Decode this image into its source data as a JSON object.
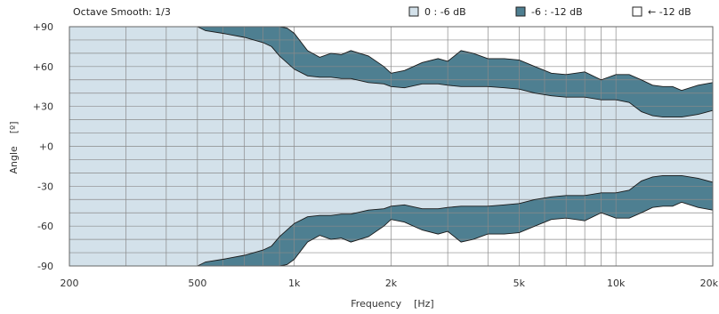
{
  "header": {
    "smoothing": "Octave Smooth: 1/3"
  },
  "legend": [
    {
      "label": "0 : -6 dB",
      "color": "#d3e1ea"
    },
    {
      "label": "-6 : -12 dB",
      "color": "#4e7f91"
    },
    {
      "label": "← -12 dB",
      "color": "#ffffff"
    }
  ],
  "colors": {
    "band_inner": "#d3e1ea",
    "band_mid": "#4e7f91",
    "outer": "#ffffff",
    "grid": "#8a8a8a",
    "edge": "#1a1a1a"
  },
  "chart_data": {
    "type": "area",
    "title": "Octave Smooth: 1/3",
    "xlabel": "Frequency    [Hz]",
    "ylabel": "Angle    [º]",
    "xscale": "log",
    "xlim": [
      200,
      20000
    ],
    "ylim": [
      -90,
      90
    ],
    "x_ticks": [
      {
        "value": 200,
        "label": "200"
      },
      {
        "value": 500,
        "label": "500"
      },
      {
        "value": 1000,
        "label": "1k"
      },
      {
        "value": 2000,
        "label": "2k"
      },
      {
        "value": 5000,
        "label": "5k"
      },
      {
        "value": 10000,
        "label": "10k"
      },
      {
        "value": 20000,
        "label": "20k"
      }
    ],
    "y_ticks": [
      {
        "value": 90,
        "label": "+90"
      },
      {
        "value": 60,
        "label": "+60"
      },
      {
        "value": 30,
        "label": "+30"
      },
      {
        "value": 0,
        "label": "+0"
      },
      {
        "value": -30,
        "label": "-30"
      },
      {
        "value": -60,
        "label": "-60"
      },
      {
        "value": -90,
        "label": "-90"
      }
    ],
    "grid": true,
    "legend_position": "top",
    "series": [
      {
        "name": "0 : -6 dB",
        "x": [
          200,
          500,
          530,
          600,
          700,
          800,
          850,
          900,
          1000,
          1100,
          1200,
          1300,
          1400,
          1500,
          1700,
          1900,
          2000,
          2200,
          2500,
          2800,
          3000,
          3300,
          3600,
          4000,
          4500,
          5000,
          5600,
          6300,
          7000,
          8000,
          9000,
          10000,
          11000,
          12000,
          13000,
          14000,
          15000,
          16000,
          18000,
          20000
        ],
        "upper": [
          90,
          90,
          87,
          85,
          82,
          78,
          75,
          68,
          58,
          53,
          52,
          52,
          51,
          51,
          48,
          47,
          45,
          44,
          47,
          47,
          46,
          45,
          45,
          45,
          44,
          43,
          40,
          38,
          37,
          37,
          35,
          35,
          33,
          26,
          23,
          22,
          22,
          22,
          24,
          27
        ],
        "lower": [
          -90,
          -90,
          -87,
          -85,
          -82,
          -78,
          -75,
          -68,
          -58,
          -53,
          -52,
          -52,
          -51,
          -51,
          -48,
          -47,
          -45,
          -44,
          -47,
          -47,
          -46,
          -45,
          -45,
          -45,
          -44,
          -43,
          -40,
          -38,
          -37,
          -37,
          -35,
          -35,
          -33,
          -26,
          -23,
          -22,
          -22,
          -22,
          -24,
          -27
        ]
      },
      {
        "name": "-6 : -12 dB",
        "x": [
          200,
          500,
          800,
          900,
          950,
          1000,
          1100,
          1200,
          1300,
          1400,
          1500,
          1700,
          1900,
          2000,
          2200,
          2500,
          2800,
          3000,
          3300,
          3600,
          4000,
          4500,
          5000,
          5600,
          6300,
          7000,
          8000,
          9000,
          10000,
          11000,
          12000,
          13000,
          14000,
          15000,
          16000,
          18000,
          20000
        ],
        "upper": [
          90,
          90,
          90,
          90,
          89,
          85,
          72,
          67,
          70,
          69,
          72,
          68,
          60,
          55,
          57,
          63,
          66,
          64,
          72,
          70,
          66,
          66,
          65,
          60,
          55,
          54,
          56,
          50,
          54,
          54,
          50,
          46,
          45,
          45,
          42,
          46,
          48
        ],
        "lower": [
          -90,
          -90,
          -90,
          -90,
          -89,
          -85,
          -72,
          -67,
          -70,
          -69,
          -72,
          -68,
          -60,
          -55,
          -57,
          -63,
          -66,
          -64,
          -72,
          -70,
          -66,
          -66,
          -65,
          -60,
          -55,
          -54,
          -56,
          -50,
          -54,
          -54,
          -50,
          -46,
          -45,
          -45,
          -42,
          -46,
          -48
        ]
      }
    ]
  }
}
